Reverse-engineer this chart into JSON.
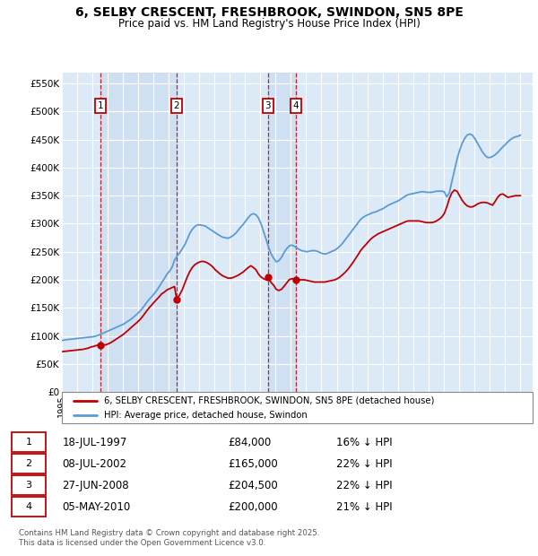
{
  "title_line1": "6, SELBY CRESCENT, FRESHBROOK, SWINDON, SN5 8PE",
  "title_line2": "Price paid vs. HM Land Registry's House Price Index (HPI)",
  "background_color": "#ffffff",
  "plot_bg_color": "#dce9f7",
  "grid_color": "#ffffff",
  "sales": [
    {
      "num": 1,
      "date_x": 1997.54,
      "price": 84000,
      "label": "18-JUL-1997",
      "pct": "16%"
    },
    {
      "num": 2,
      "date_x": 2002.52,
      "price": 165000,
      "label": "08-JUL-2002",
      "pct": "22%"
    },
    {
      "num": 3,
      "date_x": 2008.49,
      "price": 204500,
      "label": "27-JUN-2008",
      "pct": "22%"
    },
    {
      "num": 4,
      "date_x": 2010.34,
      "price": 200000,
      "label": "05-MAY-2010",
      "pct": "21%"
    }
  ],
  "hpi_color": "#5b9bd5",
  "property_color": "#c00000",
  "vline_color": "#c00000",
  "box_color": "#c00000",
  "shade_color": "#c6d9f0",
  "xlim_start": 1995.0,
  "xlim_end": 2025.83,
  "ylim_min": 0,
  "ylim_max": 570000,
  "yticks": [
    0,
    50000,
    100000,
    150000,
    200000,
    250000,
    300000,
    350000,
    400000,
    450000,
    500000,
    550000
  ],
  "ytick_labels": [
    "£0",
    "£50K",
    "£100K",
    "£150K",
    "£200K",
    "£250K",
    "£300K",
    "£350K",
    "£400K",
    "£450K",
    "£500K",
    "£550K"
  ],
  "footer": "Contains HM Land Registry data © Crown copyright and database right 2025.\nThis data is licensed under the Open Government Licence v3.0.",
  "hpi_x": [
    1995.04,
    1995.21,
    1995.38,
    1995.54,
    1995.71,
    1995.88,
    1996.04,
    1996.21,
    1996.38,
    1996.54,
    1996.71,
    1996.88,
    1997.04,
    1997.21,
    1997.38,
    1997.54,
    1997.71,
    1997.88,
    1998.04,
    1998.21,
    1998.38,
    1998.54,
    1998.71,
    1998.88,
    1999.04,
    1999.21,
    1999.38,
    1999.54,
    1999.71,
    1999.88,
    2000.04,
    2000.21,
    2000.38,
    2000.54,
    2000.71,
    2000.88,
    2001.04,
    2001.21,
    2001.38,
    2001.54,
    2001.71,
    2001.88,
    2002.04,
    2002.21,
    2002.38,
    2002.54,
    2002.71,
    2002.88,
    2003.04,
    2003.21,
    2003.38,
    2003.54,
    2003.71,
    2003.88,
    2004.04,
    2004.21,
    2004.38,
    2004.54,
    2004.71,
    2004.88,
    2005.04,
    2005.21,
    2005.38,
    2005.54,
    2005.71,
    2005.88,
    2006.04,
    2006.21,
    2006.38,
    2006.54,
    2006.71,
    2006.88,
    2007.04,
    2007.21,
    2007.38,
    2007.54,
    2007.71,
    2007.88,
    2008.04,
    2008.21,
    2008.38,
    2008.54,
    2008.71,
    2008.88,
    2009.04,
    2009.21,
    2009.38,
    2009.54,
    2009.71,
    2009.88,
    2010.04,
    2010.21,
    2010.38,
    2010.54,
    2010.71,
    2010.88,
    2011.04,
    2011.21,
    2011.38,
    2011.54,
    2011.71,
    2011.88,
    2012.04,
    2012.21,
    2012.38,
    2012.54,
    2012.71,
    2012.88,
    2013.04,
    2013.21,
    2013.38,
    2013.54,
    2013.71,
    2013.88,
    2014.04,
    2014.21,
    2014.38,
    2014.54,
    2014.71,
    2014.88,
    2015.04,
    2015.21,
    2015.38,
    2015.54,
    2015.71,
    2015.88,
    2016.04,
    2016.21,
    2016.38,
    2016.54,
    2016.71,
    2016.88,
    2017.04,
    2017.21,
    2017.38,
    2017.54,
    2017.71,
    2017.88,
    2018.04,
    2018.21,
    2018.38,
    2018.54,
    2018.71,
    2018.88,
    2019.04,
    2019.21,
    2019.38,
    2019.54,
    2019.71,
    2019.88,
    2020.04,
    2020.21,
    2020.38,
    2020.54,
    2020.71,
    2020.88,
    2021.04,
    2021.21,
    2021.38,
    2021.54,
    2021.71,
    2021.88,
    2022.04,
    2022.21,
    2022.38,
    2022.54,
    2022.71,
    2022.88,
    2023.04,
    2023.21,
    2023.38,
    2023.54,
    2023.71,
    2023.88,
    2024.04,
    2024.21,
    2024.38,
    2024.54,
    2024.71,
    2024.88,
    2025.04
  ],
  "hpi_y": [
    92000,
    93000,
    93500,
    94000,
    94500,
    95000,
    95500,
    96000,
    96500,
    97000,
    97500,
    98000,
    98500,
    99500,
    101000,
    103000,
    105000,
    107000,
    109000,
    111000,
    113000,
    115000,
    117000,
    119000,
    121000,
    124000,
    127000,
    130000,
    134000,
    138000,
    142000,
    147000,
    153000,
    159000,
    165000,
    170000,
    175000,
    181000,
    188000,
    195000,
    202000,
    210000,
    215000,
    222000,
    235000,
    242000,
    248000,
    255000,
    262000,
    272000,
    283000,
    290000,
    295000,
    298000,
    298000,
    297000,
    296000,
    293000,
    290000,
    287000,
    284000,
    281000,
    278000,
    276000,
    275000,
    274000,
    276000,
    279000,
    283000,
    288000,
    294000,
    299000,
    305000,
    311000,
    316000,
    318000,
    316000,
    310000,
    300000,
    286000,
    272000,
    258000,
    246000,
    238000,
    232000,
    234000,
    240000,
    248000,
    255000,
    260000,
    262000,
    260000,
    257000,
    254000,
    252000,
    251000,
    250000,
    251000,
    252000,
    252000,
    251000,
    249000,
    247000,
    246000,
    247000,
    249000,
    251000,
    253000,
    256000,
    260000,
    265000,
    271000,
    277000,
    283000,
    289000,
    295000,
    301000,
    307000,
    311000,
    314000,
    316000,
    318000,
    320000,
    321000,
    323000,
    325000,
    327000,
    330000,
    333000,
    335000,
    337000,
    339000,
    341000,
    344000,
    347000,
    350000,
    352000,
    353000,
    354000,
    355000,
    356000,
    357000,
    357000,
    356000,
    356000,
    356000,
    357000,
    358000,
    358000,
    358000,
    357000,
    348000,
    355000,
    375000,
    395000,
    415000,
    430000,
    443000,
    452000,
    458000,
    460000,
    458000,
    452000,
    444000,
    436000,
    428000,
    422000,
    418000,
    418000,
    420000,
    423000,
    427000,
    432000,
    437000,
    441000,
    446000,
    450000,
    453000,
    455000,
    456000,
    458000
  ],
  "prop_x": [
    1995.04,
    1995.21,
    1995.38,
    1995.54,
    1995.71,
    1995.88,
    1996.04,
    1996.21,
    1996.38,
    1996.54,
    1996.71,
    1996.88,
    1997.04,
    1997.21,
    1997.38,
    1997.54,
    1997.71,
    1997.88,
    1998.04,
    1998.21,
    1998.38,
    1998.54,
    1998.71,
    1998.88,
    1999.04,
    1999.21,
    1999.38,
    1999.54,
    1999.71,
    1999.88,
    2000.04,
    2000.21,
    2000.38,
    2000.54,
    2000.71,
    2000.88,
    2001.04,
    2001.21,
    2001.38,
    2001.54,
    2001.71,
    2001.88,
    2002.04,
    2002.21,
    2002.38,
    2002.52,
    2002.71,
    2002.88,
    2003.04,
    2003.21,
    2003.38,
    2003.54,
    2003.71,
    2003.88,
    2004.04,
    2004.21,
    2004.38,
    2004.54,
    2004.71,
    2004.88,
    2005.04,
    2005.21,
    2005.38,
    2005.54,
    2005.71,
    2005.88,
    2006.04,
    2006.21,
    2006.38,
    2006.54,
    2006.71,
    2006.88,
    2007.04,
    2007.21,
    2007.38,
    2007.54,
    2007.71,
    2007.88,
    2008.04,
    2008.21,
    2008.38,
    2008.49,
    2008.71,
    2008.88,
    2009.04,
    2009.21,
    2009.38,
    2009.54,
    2009.71,
    2009.88,
    2010.04,
    2010.21,
    2010.34,
    2010.54,
    2010.71,
    2010.88,
    2011.04,
    2011.21,
    2011.38,
    2011.54,
    2011.71,
    2011.88,
    2012.04,
    2012.21,
    2012.38,
    2012.54,
    2012.71,
    2012.88,
    2013.04,
    2013.21,
    2013.38,
    2013.54,
    2013.71,
    2013.88,
    2014.04,
    2014.21,
    2014.38,
    2014.54,
    2014.71,
    2014.88,
    2015.04,
    2015.21,
    2015.38,
    2015.54,
    2015.71,
    2015.88,
    2016.04,
    2016.21,
    2016.38,
    2016.54,
    2016.71,
    2016.88,
    2017.04,
    2017.21,
    2017.38,
    2017.54,
    2017.71,
    2017.88,
    2018.04,
    2018.21,
    2018.38,
    2018.54,
    2018.71,
    2018.88,
    2019.04,
    2019.21,
    2019.38,
    2019.54,
    2019.71,
    2019.88,
    2020.04,
    2020.21,
    2020.38,
    2020.54,
    2020.71,
    2020.88,
    2021.04,
    2021.21,
    2021.38,
    2021.54,
    2021.71,
    2021.88,
    2022.04,
    2022.21,
    2022.38,
    2022.54,
    2022.71,
    2022.88,
    2023.04,
    2023.21,
    2023.38,
    2023.54,
    2023.71,
    2023.88,
    2024.04,
    2024.21,
    2024.38,
    2024.54,
    2024.71,
    2024.88,
    2025.04
  ],
  "prop_y": [
    72000,
    72500,
    73000,
    73500,
    74000,
    74500,
    75000,
    75500,
    76000,
    77000,
    78000,
    80000,
    81000,
    82500,
    83500,
    84000,
    84000,
    84000,
    86000,
    88000,
    91000,
    94000,
    97000,
    100000,
    103000,
    107000,
    111000,
    115000,
    119000,
    123000,
    127000,
    132000,
    138000,
    144000,
    150000,
    155000,
    160000,
    165000,
    170000,
    175000,
    178000,
    182000,
    184000,
    186000,
    188000,
    165000,
    173000,
    182000,
    193000,
    205000,
    215000,
    222000,
    227000,
    230000,
    232000,
    233000,
    232000,
    230000,
    227000,
    223000,
    218000,
    214000,
    210000,
    207000,
    205000,
    203000,
    203000,
    204000,
    206000,
    208000,
    211000,
    214000,
    218000,
    222000,
    225000,
    222000,
    218000,
    210000,
    205000,
    202000,
    200000,
    204500,
    195000,
    190000,
    183000,
    181000,
    183000,
    188000,
    194000,
    200000,
    202000,
    201000,
    200000,
    200000,
    200000,
    200000,
    199000,
    198000,
    197000,
    196000,
    196000,
    196000,
    196000,
    196000,
    197000,
    198000,
    199000,
    200000,
    202000,
    205000,
    209000,
    213000,
    218000,
    224000,
    230000,
    237000,
    244000,
    251000,
    257000,
    262000,
    267000,
    272000,
    276000,
    279000,
    282000,
    284000,
    286000,
    288000,
    290000,
    292000,
    294000,
    296000,
    298000,
    300000,
    302000,
    304000,
    305000,
    305000,
    305000,
    305000,
    305000,
    304000,
    303000,
    302000,
    302000,
    302000,
    303000,
    305000,
    308000,
    312000,
    318000,
    330000,
    345000,
    355000,
    360000,
    358000,
    350000,
    342000,
    336000,
    332000,
    330000,
    330000,
    332000,
    335000,
    337000,
    338000,
    338000,
    337000,
    335000,
    333000,
    340000,
    347000,
    352000,
    353000,
    350000,
    347000,
    348000,
    349000,
    350000,
    350000,
    350000
  ]
}
